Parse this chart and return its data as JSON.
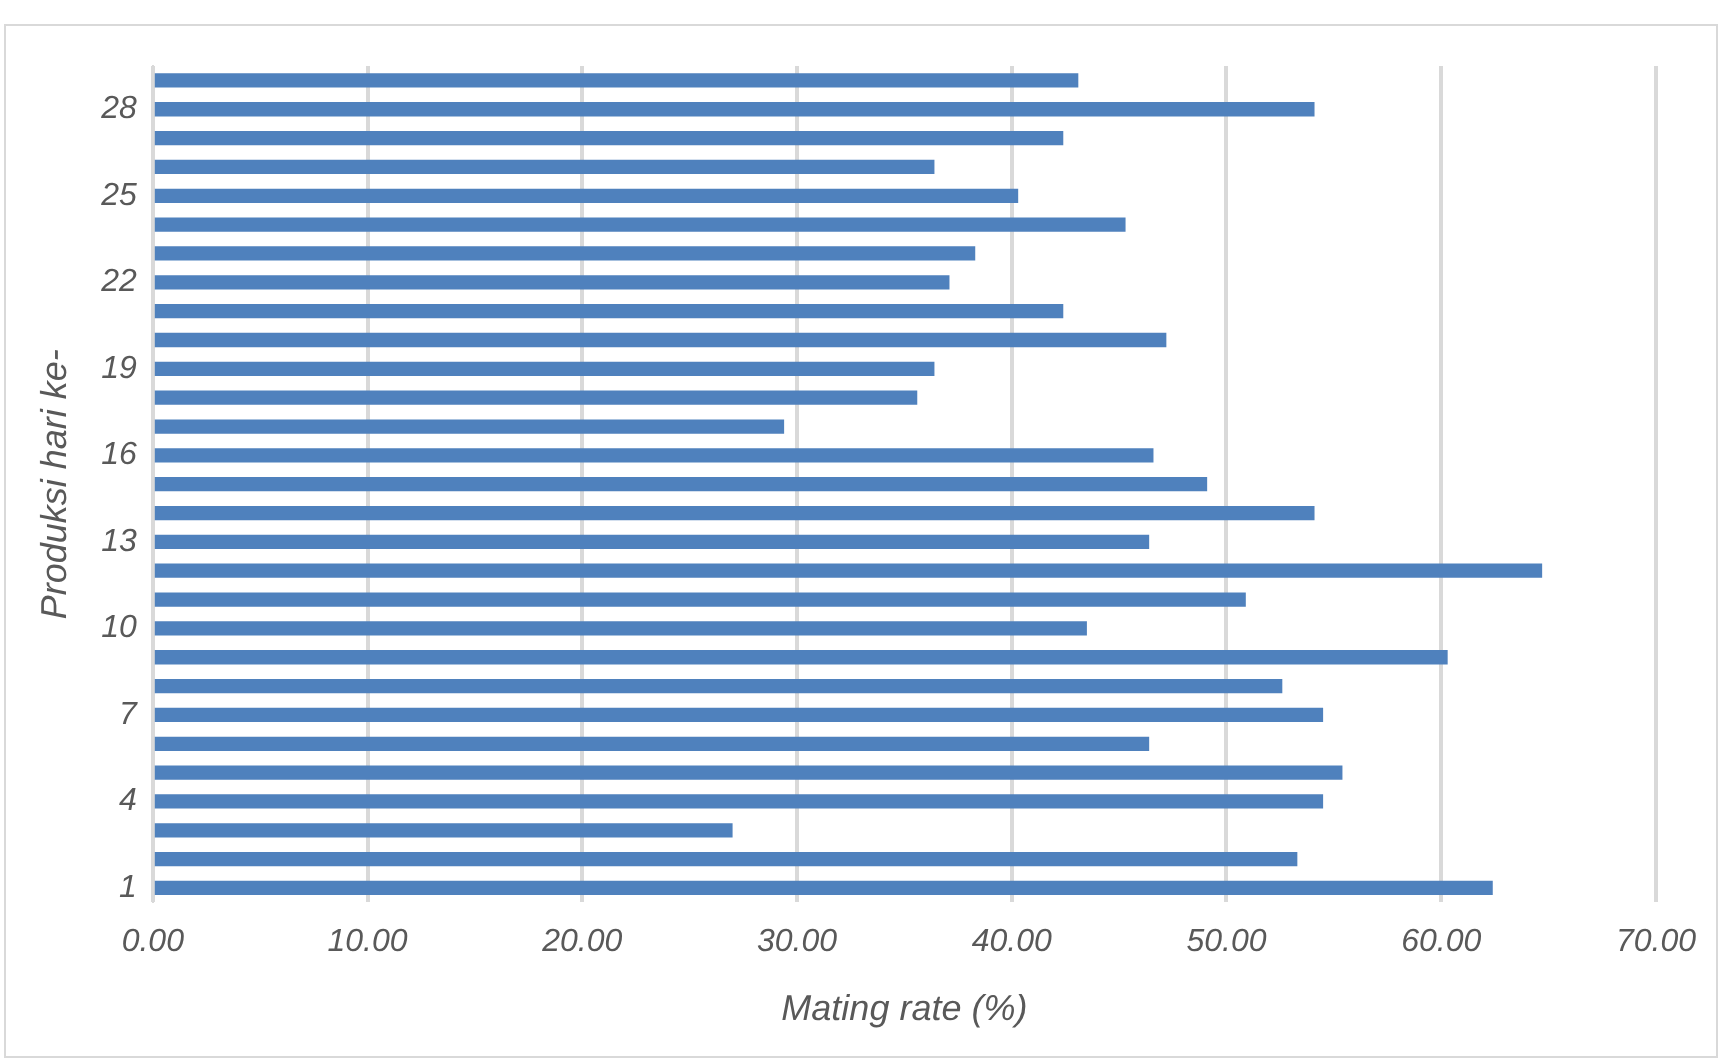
{
  "chart_data": {
    "type": "bar",
    "orientation": "horizontal",
    "xlabel": "Mating rate (%)",
    "ylabel": "Produksi hari ke-",
    "categories": [
      null,
      "28",
      null,
      null,
      "25",
      null,
      null,
      "22",
      null,
      null,
      "19",
      null,
      null,
      "16",
      null,
      null,
      "13",
      null,
      null,
      "10",
      null,
      null,
      "7",
      null,
      null,
      "4",
      null,
      null,
      "1"
    ],
    "values": [
      43.1,
      54.1,
      42.4,
      36.4,
      40.3,
      45.3,
      38.3,
      37.1,
      42.4,
      47.2,
      36.4,
      35.6,
      29.4,
      46.6,
      49.1,
      54.1,
      46.4,
      64.7,
      50.9,
      43.5,
      60.3,
      52.6,
      54.5,
      46.4,
      55.4,
      54.5,
      27.0,
      53.3,
      62.4
    ],
    "color": "#4f81bd",
    "xlim": [
      0,
      70
    ],
    "xticks": [
      {
        "value": 0,
        "label": "0.00"
      },
      {
        "value": 10,
        "label": "10.00"
      },
      {
        "value": 20,
        "label": "20.00"
      },
      {
        "value": 30,
        "label": "30.00"
      },
      {
        "value": 40,
        "label": "40.00"
      },
      {
        "value": 50,
        "label": "50.00"
      },
      {
        "value": 60,
        "label": "60.00"
      },
      {
        "value": 70,
        "label": "70.00"
      }
    ],
    "grid": "x",
    "legend": false
  }
}
